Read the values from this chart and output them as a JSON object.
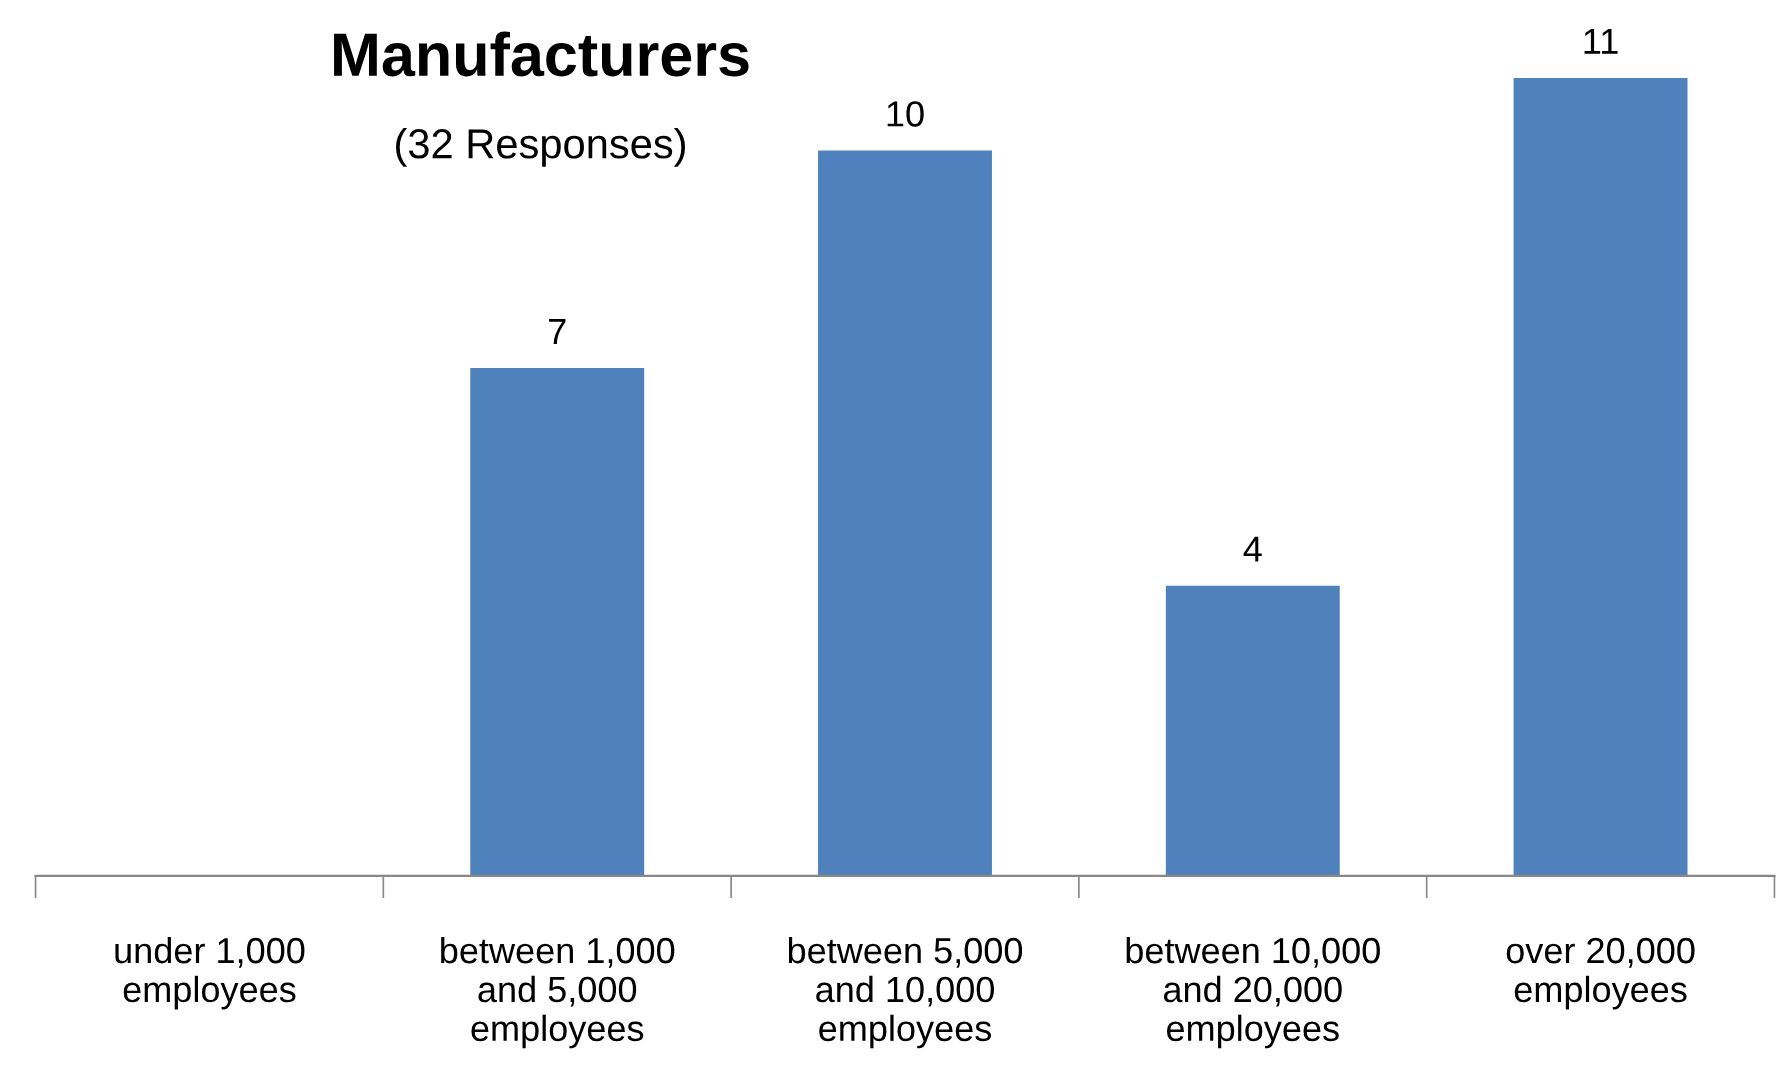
{
  "chart_data": {
    "type": "bar",
    "title": "Manufacturers",
    "subtitle": "(32 Responses)",
    "categories": [
      "under 1,000\nemployees",
      "between 1,000\nand 5,000\nemployees",
      "between 5,000\nand 10,000\nemployees",
      "between 10,000\nand 20,000\nemployees",
      "over 20,000\nemployees"
    ],
    "values": [
      0,
      7,
      10,
      4,
      11
    ],
    "value_labels": [
      null,
      "7",
      "10",
      "4",
      "11"
    ],
    "color": "#4f81bd",
    "grid": false,
    "legend": false
  }
}
